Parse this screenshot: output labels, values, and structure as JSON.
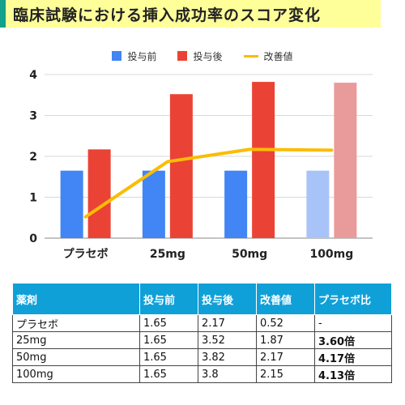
{
  "title": "臨床試験における挿入成功率のスコア変化",
  "chart_data": {
    "type": "bar",
    "categories": [
      "プラセボ",
      "25mg",
      "50mg",
      "100mg"
    ],
    "series": [
      {
        "name": "投与前",
        "type": "bar",
        "values": [
          1.65,
          1.65,
          1.65,
          1.65
        ]
      },
      {
        "name": "投与後",
        "type": "bar",
        "values": [
          2.17,
          3.52,
          3.82,
          3.8
        ]
      },
      {
        "name": "改善値",
        "type": "line",
        "values": [
          0.52,
          1.87,
          2.17,
          2.15
        ]
      }
    ],
    "ylim": [
      0,
      4
    ],
    "yticks": [
      0,
      1,
      2,
      3,
      4
    ],
    "grid": true,
    "legend": "top-center"
  },
  "colors": {
    "before": "#4285f4",
    "before_light": "#a8c3f7",
    "after": "#ea4335",
    "after_light": "#e99a9a",
    "improve": "#fbbc04",
    "table_header": "#10a0d8",
    "title_bg": "#ffff9a",
    "title_accent": "#14a08a"
  },
  "table": {
    "headers": [
      "薬剤",
      "投与前",
      "投与後",
      "改善値",
      "プラセボ比"
    ],
    "rows": [
      [
        "プラセボ",
        "1.65",
        "2.17",
        "0.52",
        "-"
      ],
      [
        "25mg",
        "1.65",
        "3.52",
        "1.87",
        "3.60倍"
      ],
      [
        "50mg",
        "1.65",
        "3.82",
        "2.17",
        "4.17倍"
      ],
      [
        "100mg",
        "1.65",
        "3.8",
        "2.15",
        "4.13倍"
      ]
    ]
  }
}
